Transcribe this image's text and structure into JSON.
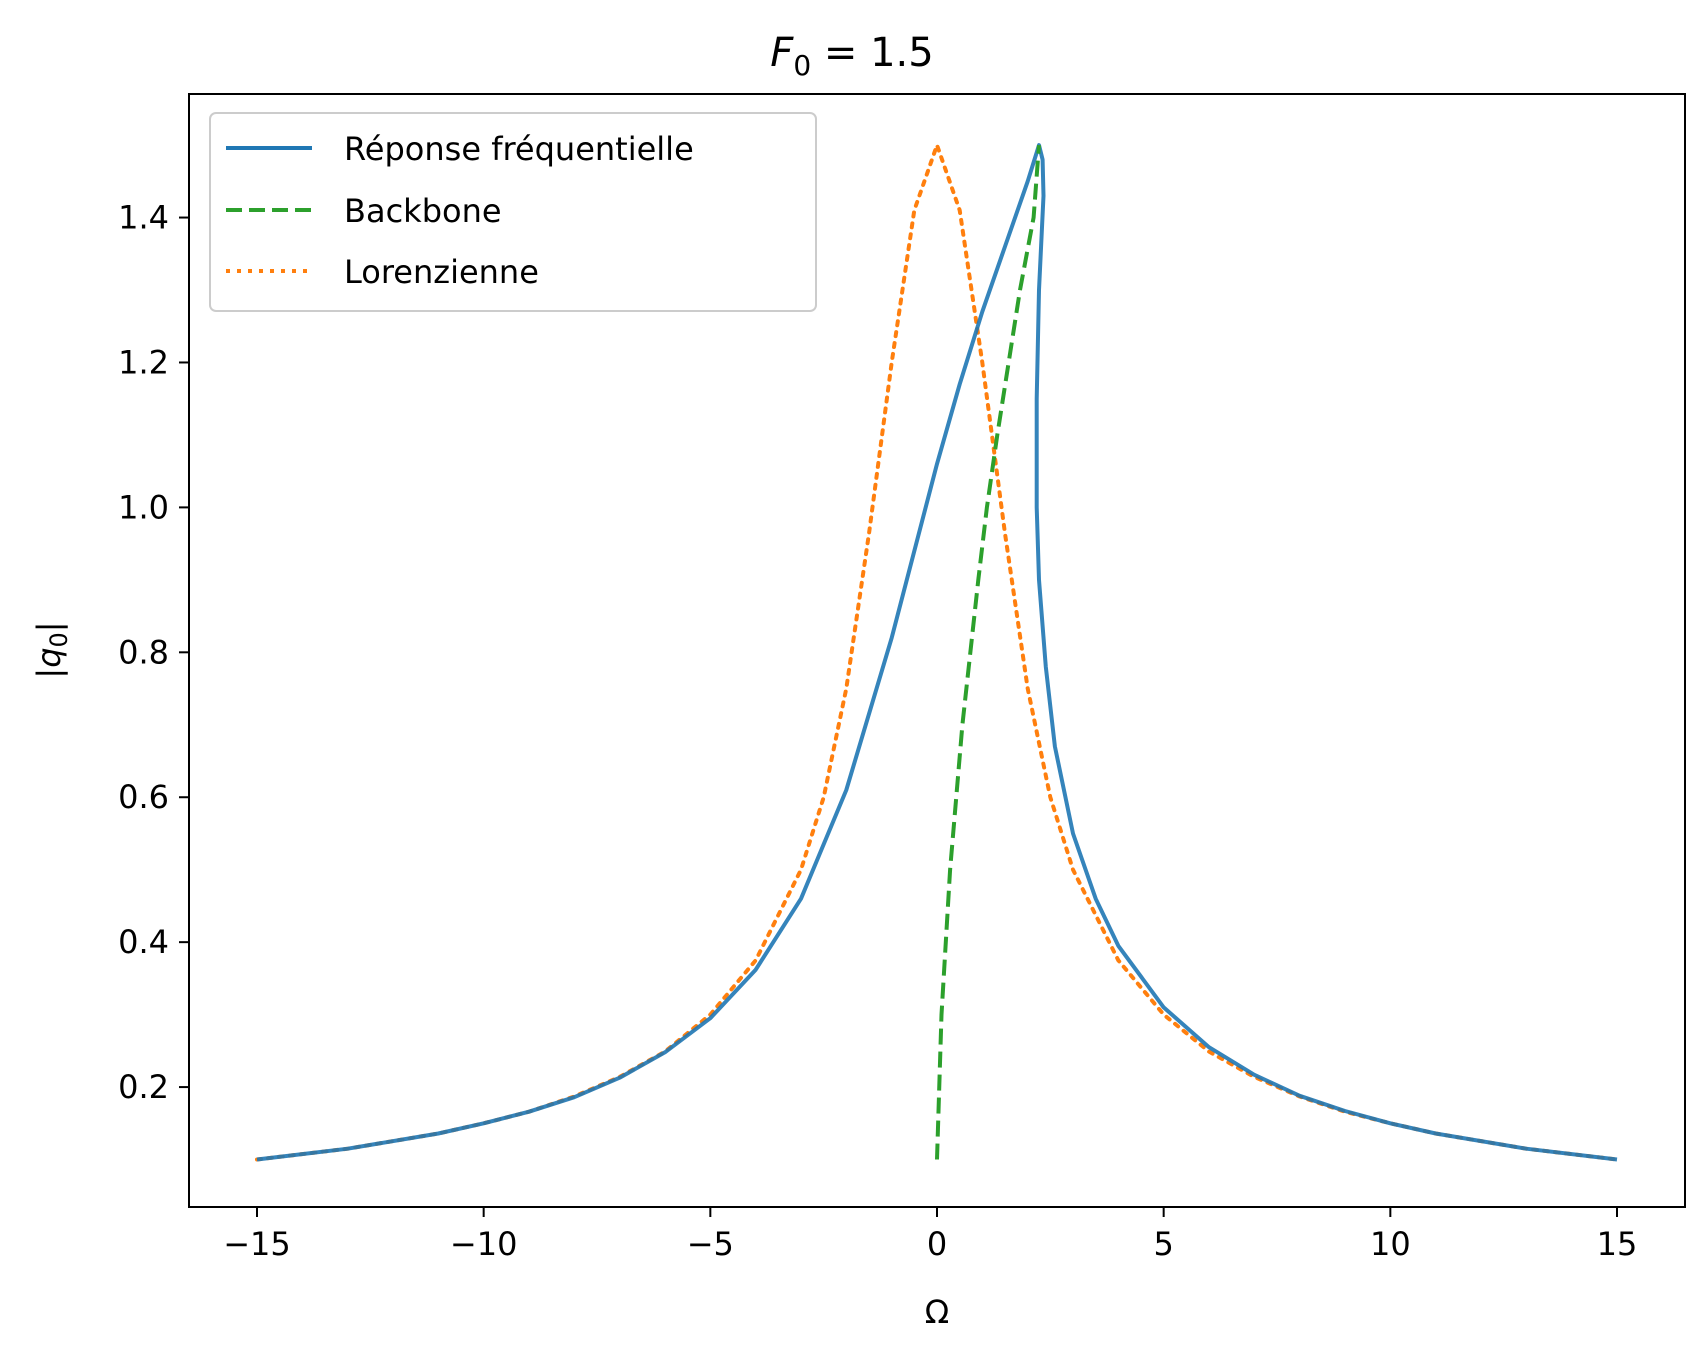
{
  "chart_data": {
    "type": "line",
    "title": {
      "main": "F",
      "sub": "0",
      "rest": " = 1.5"
    },
    "xlabel": "Ω",
    "ylabel": {
      "open": "|",
      "main": "q",
      "sub": "0",
      "close": "|"
    },
    "xlim": [
      -16.5,
      16.5
    ],
    "ylim": [
      0.0345,
      1.5705
    ],
    "xticks": [
      -15,
      -10,
      -5,
      0,
      5,
      10,
      15
    ],
    "xtick_labels": [
      "−15",
      "−10",
      "−5",
      "0",
      "5",
      "10",
      "15"
    ],
    "yticks": [
      0.2,
      0.4,
      0.6,
      0.8,
      1.0,
      1.2,
      1.4
    ],
    "ytick_labels": [
      "0.2",
      "0.4",
      "0.6",
      "0.8",
      "1.0",
      "1.2",
      "1.4"
    ],
    "legend_position": "upper left",
    "series": [
      {
        "name": "Réponse fréquentielle",
        "color": "#1f77b4",
        "style": "solid",
        "points": [
          [
            -15,
            0.1
          ],
          [
            -13,
            0.115
          ],
          [
            -11,
            0.136
          ],
          [
            -10,
            0.15
          ],
          [
            -9,
            0.166
          ],
          [
            -8,
            0.186
          ],
          [
            -7,
            0.213
          ],
          [
            -6,
            0.248
          ],
          [
            -5,
            0.295
          ],
          [
            -4,
            0.362
          ],
          [
            -3,
            0.46
          ],
          [
            -2,
            0.61
          ],
          [
            -1,
            0.82
          ],
          [
            0,
            1.06
          ],
          [
            0.5,
            1.17
          ],
          [
            1,
            1.27
          ],
          [
            1.5,
            1.36
          ],
          [
            2,
            1.45
          ],
          [
            2.25,
            1.5
          ],
          [
            2.33,
            1.48
          ],
          [
            2.35,
            1.43
          ],
          [
            2.25,
            1.3
          ],
          [
            2.2,
            1.15
          ],
          [
            2.2,
            1.0
          ],
          [
            2.25,
            0.9
          ],
          [
            2.4,
            0.78
          ],
          [
            2.6,
            0.67
          ],
          [
            3,
            0.55
          ],
          [
            3.5,
            0.46
          ],
          [
            4,
            0.395
          ],
          [
            5,
            0.31
          ],
          [
            6,
            0.255
          ],
          [
            7,
            0.217
          ],
          [
            8,
            0.188
          ],
          [
            9,
            0.167
          ],
          [
            10,
            0.15
          ],
          [
            11,
            0.136
          ],
          [
            13,
            0.115
          ],
          [
            15,
            0.1
          ]
        ]
      },
      {
        "name": "Backbone",
        "color": "#2ca02c",
        "style": "dashed",
        "points": [
          [
            0.0,
            0.1
          ],
          [
            0.1,
            0.3
          ],
          [
            0.29,
            0.5
          ],
          [
            0.56,
            0.7
          ],
          [
            0.91,
            0.9
          ],
          [
            1.1,
            1.0
          ],
          [
            1.33,
            1.1
          ],
          [
            1.83,
            1.3
          ],
          [
            2.13,
            1.4
          ],
          [
            2.25,
            1.5
          ]
        ]
      },
      {
        "name": "Lorenzienne",
        "color": "#ff7f0e",
        "style": "dotted",
        "points": [
          [
            -15,
            0.1
          ],
          [
            -13,
            0.115
          ],
          [
            -11,
            0.136
          ],
          [
            -10,
            0.15
          ],
          [
            -9,
            0.166
          ],
          [
            -8,
            0.187
          ],
          [
            -7,
            0.214
          ],
          [
            -6,
            0.249
          ],
          [
            -5,
            0.3
          ],
          [
            -4,
            0.375
          ],
          [
            -3,
            0.5
          ],
          [
            -2.5,
            0.6
          ],
          [
            -2,
            0.75
          ],
          [
            -1.5,
            0.964
          ],
          [
            -1,
            1.2
          ],
          [
            -0.5,
            1.41
          ],
          [
            0,
            1.5
          ],
          [
            0.5,
            1.41
          ],
          [
            1,
            1.2
          ],
          [
            1.5,
            0.964
          ],
          [
            2,
            0.75
          ],
          [
            2.5,
            0.6
          ],
          [
            3,
            0.5
          ],
          [
            4,
            0.375
          ],
          [
            5,
            0.3
          ],
          [
            6,
            0.249
          ],
          [
            7,
            0.214
          ],
          [
            8,
            0.187
          ],
          [
            9,
            0.166
          ],
          [
            10,
            0.15
          ],
          [
            11,
            0.136
          ],
          [
            13,
            0.115
          ],
          [
            15,
            0.1
          ]
        ]
      }
    ]
  }
}
